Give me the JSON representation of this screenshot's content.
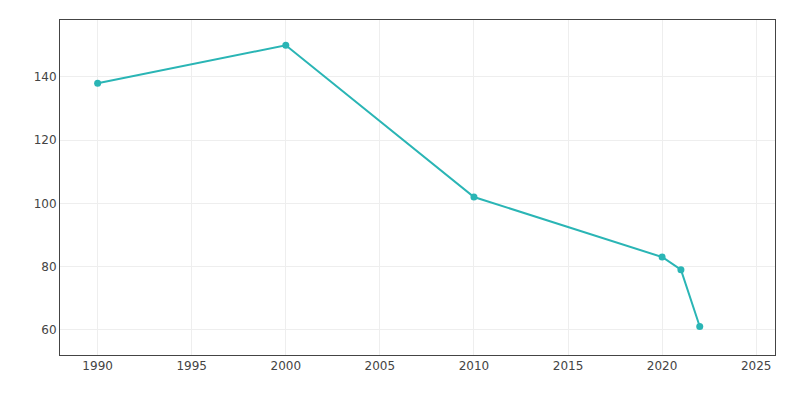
{
  "chart_data": {
    "type": "line",
    "x": [
      1990,
      2000,
      2010,
      2020,
      2021,
      2022
    ],
    "values": [
      138,
      150,
      102,
      83,
      79,
      61
    ],
    "color": "#2ab5b5",
    "marker": "circle",
    "line_style": "solid",
    "xlim": [
      1988,
      2026
    ],
    "xticks": [
      1990,
      1995,
      2000,
      2005,
      2010,
      2015,
      2020,
      2025
    ],
    "ylim": [
      52,
      158
    ],
    "yticks": [
      60,
      80,
      100,
      120,
      140
    ],
    "grid": true
  }
}
